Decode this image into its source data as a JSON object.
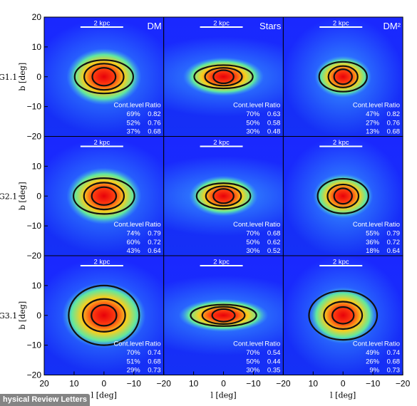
{
  "figure": {
    "rows": [
      {
        "label": "G1.1"
      },
      {
        "label": "G2.1"
      },
      {
        "label": "G3.1"
      }
    ],
    "columns": [
      {
        "title": "DM"
      },
      {
        "title": "Stars"
      },
      {
        "title": "DM²"
      }
    ],
    "scale_bar_label": "2 kpc",
    "contour_header": {
      "level": "Cont.level",
      "ratio": "Ratio"
    },
    "panels": [
      {
        "row": 0,
        "col": 0,
        "contours": [
          {
            "level": "69%",
            "ratio": "0.82"
          },
          {
            "level": "52%",
            "ratio": "0.76"
          },
          {
            "level": "37%",
            "ratio": "0.68"
          }
        ]
      },
      {
        "row": 0,
        "col": 1,
        "contours": [
          {
            "level": "70%",
            "ratio": "0.63"
          },
          {
            "level": "50%",
            "ratio": "0.58"
          },
          {
            "level": "30%",
            "ratio": "0.48"
          }
        ]
      },
      {
        "row": 0,
        "col": 2,
        "contours": [
          {
            "level": "47%",
            "ratio": "0.82"
          },
          {
            "level": "27%",
            "ratio": "0.76"
          },
          {
            "level": "13%",
            "ratio": "0.68"
          }
        ]
      },
      {
        "row": 1,
        "col": 0,
        "contours": [
          {
            "level": "74%",
            "ratio": "0.79"
          },
          {
            "level": "60%",
            "ratio": "0.72"
          },
          {
            "level": "43%",
            "ratio": "0.64"
          }
        ]
      },
      {
        "row": 1,
        "col": 1,
        "contours": [
          {
            "level": "70%",
            "ratio": "0.68"
          },
          {
            "level": "50%",
            "ratio": "0.62"
          },
          {
            "level": "30%",
            "ratio": "0.52"
          }
        ]
      },
      {
        "row": 1,
        "col": 2,
        "contours": [
          {
            "level": "55%",
            "ratio": "0.79"
          },
          {
            "level": "36%",
            "ratio": "0.72"
          },
          {
            "level": "18%",
            "ratio": "0.64"
          }
        ]
      },
      {
        "row": 2,
        "col": 0,
        "contours": [
          {
            "level": "70%",
            "ratio": "0.74"
          },
          {
            "level": "51%",
            "ratio": "0.68"
          },
          {
            "level": "29%",
            "ratio": "0.73"
          }
        ]
      },
      {
        "row": 2,
        "col": 1,
        "contours": [
          {
            "level": "70%",
            "ratio": "0.54"
          },
          {
            "level": "50%",
            "ratio": "0.44"
          },
          {
            "level": "30%",
            "ratio": "0.35"
          }
        ]
      },
      {
        "row": 2,
        "col": 2,
        "contours": [
          {
            "level": "49%",
            "ratio": "0.74"
          },
          {
            "level": "26%",
            "ratio": "0.68"
          },
          {
            "level": "9%",
            "ratio": "0.73"
          }
        ]
      }
    ],
    "x_axis": {
      "label": "l [deg]",
      "ticks": [
        20,
        10,
        0,
        -10,
        -20
      ],
      "range": [
        20,
        -20
      ]
    },
    "y_axis": {
      "label": "b [deg]",
      "ticks": [
        20,
        10,
        0,
        -10,
        -20
      ],
      "range": [
        -20,
        20
      ]
    },
    "colormap": {
      "background": "#1a28ff",
      "glow": "#3aa0ff",
      "mid": "#60e8a0",
      "core_outer": "#f5d020",
      "core_inner": "#ff4010",
      "center": "#e8000a",
      "contour": "#111111"
    }
  },
  "watermark": "hysical Review Letters"
}
